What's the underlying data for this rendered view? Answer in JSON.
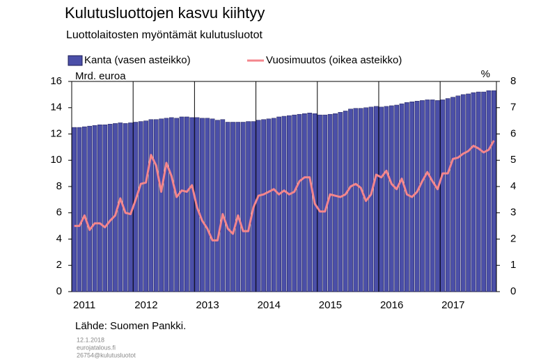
{
  "chart_data": {
    "type": "bar-line",
    "title": "Kulutusluottojen kasvu kiihtyy",
    "subtitle": "Luottolaitosten myöntämät kulutusluotot",
    "y_label": "Mrd. euroa",
    "y2_label": "%",
    "source": "Lähde: Suomen Pankki.",
    "notes": [
      "12.1.2018",
      "eurojatalous.fi",
      "26754@kulutusluotot"
    ],
    "categories": [
      "2011",
      null,
      null,
      null,
      null,
      null,
      null,
      null,
      null,
      null,
      null,
      null,
      "2012",
      null,
      null,
      null,
      null,
      null,
      null,
      null,
      null,
      null,
      null,
      null,
      "2013",
      null,
      null,
      null,
      null,
      null,
      null,
      null,
      null,
      null,
      null,
      null,
      "2014",
      null,
      null,
      null,
      null,
      null,
      null,
      null,
      null,
      null,
      null,
      null,
      "2015",
      null,
      null,
      null,
      null,
      null,
      null,
      null,
      null,
      null,
      null,
      null,
      "2016",
      null,
      null,
      null,
      null,
      null,
      null,
      null,
      null,
      null,
      null,
      null,
      "2017",
      null,
      null,
      null,
      null,
      null,
      null,
      null,
      null,
      null,
      null
    ],
    "series": [
      {
        "name": "Kanta (vasen asteikko)",
        "type": "bar",
        "color": "#4b4fa8",
        "axis": "y",
        "values": [
          12.5,
          12.5,
          12.55,
          12.6,
          12.65,
          12.7,
          12.7,
          12.75,
          12.8,
          12.85,
          12.8,
          12.85,
          12.9,
          12.95,
          13.0,
          13.1,
          13.1,
          13.15,
          13.2,
          13.25,
          13.2,
          13.3,
          13.3,
          13.25,
          13.25,
          13.2,
          13.2,
          13.15,
          13.05,
          13.1,
          12.9,
          12.9,
          12.9,
          12.9,
          12.95,
          12.95,
          13.05,
          13.1,
          13.15,
          13.2,
          13.3,
          13.35,
          13.4,
          13.45,
          13.5,
          13.55,
          13.6,
          13.55,
          13.45,
          13.45,
          13.5,
          13.55,
          13.65,
          13.75,
          13.9,
          13.95,
          13.95,
          14.0,
          14.05,
          14.1,
          14.05,
          14.1,
          14.15,
          14.2,
          14.3,
          14.4,
          14.45,
          14.5,
          14.55,
          14.6,
          14.6,
          14.55,
          14.6,
          14.7,
          14.8,
          14.9,
          15.0,
          15.05,
          15.15,
          15.2,
          15.2,
          15.3,
          15.3
        ]
      },
      {
        "name": "Vuosimuutos (oikea asteikko)",
        "type": "line",
        "color": "#f4868c",
        "axis": "y2",
        "values": [
          2.5,
          2.5,
          2.9,
          2.35,
          2.6,
          2.6,
          2.45,
          2.7,
          2.9,
          3.55,
          3.0,
          2.95,
          3.5,
          4.1,
          4.15,
          5.2,
          4.8,
          3.8,
          4.9,
          4.4,
          3.6,
          3.85,
          3.8,
          4.05,
          3.2,
          2.7,
          2.4,
          1.95,
          1.95,
          2.95,
          2.4,
          2.2,
          2.9,
          2.3,
          2.3,
          3.2,
          3.65,
          3.7,
          3.8,
          3.9,
          3.7,
          3.85,
          3.7,
          3.8,
          4.2,
          4.35,
          4.35,
          3.35,
          3.05,
          3.05,
          3.7,
          3.65,
          3.6,
          3.7,
          4.0,
          4.1,
          3.95,
          3.45,
          3.7,
          4.45,
          4.35,
          4.6,
          4.1,
          3.9,
          4.3,
          3.7,
          3.6,
          3.8,
          4.2,
          4.55,
          4.2,
          3.9,
          4.5,
          4.5,
          5.05,
          5.1,
          5.25,
          5.35,
          5.55,
          5.45,
          5.3,
          5.4,
          5.75
        ]
      }
    ],
    "ylim": [
      0,
      16
    ],
    "yticks": [
      0,
      2,
      4,
      6,
      8,
      10,
      12,
      14,
      16
    ],
    "y2lim": [
      0,
      8
    ],
    "y2ticks": [
      0,
      1,
      2,
      3,
      4,
      5,
      6,
      7,
      8
    ]
  }
}
